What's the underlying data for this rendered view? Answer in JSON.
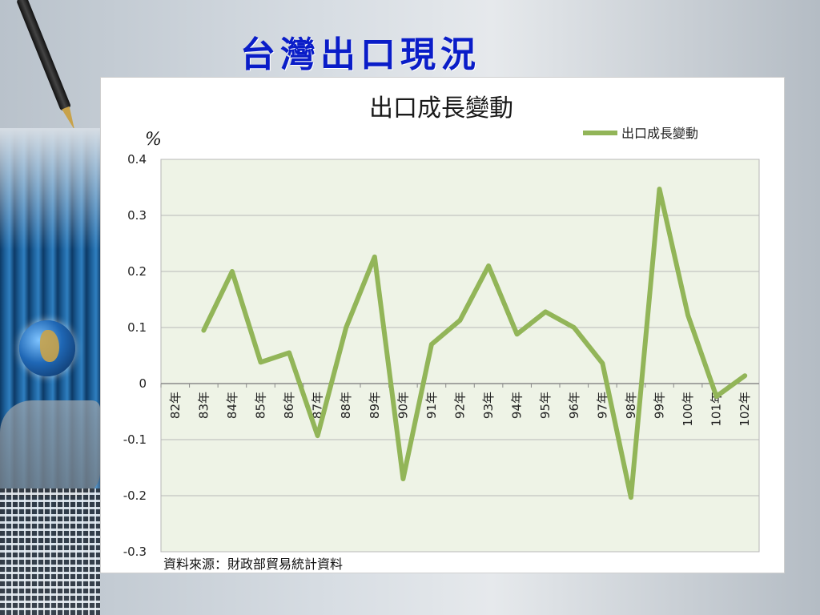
{
  "slide": {
    "title": "台灣出口現況"
  },
  "chart_data": {
    "type": "line",
    "title": "出口成長變動",
    "ylabel": "%",
    "xlabel": "",
    "ylim": [
      -0.3,
      0.4
    ],
    "yticks": [
      0.4,
      0.3,
      0.2,
      0.1,
      0,
      -0.1,
      -0.2,
      -0.3
    ],
    "ytick_labels": [
      "0.4",
      "0.3",
      "0.2",
      "0.1",
      "0",
      "-0.1",
      "-0.2",
      "-0.3"
    ],
    "categories": [
      "82年",
      "83年",
      "84年",
      "85年",
      "86年",
      "87年",
      "88年",
      "89年",
      "90年",
      "91年",
      "92年",
      "93年",
      "94年",
      "95年",
      "96年",
      "97年",
      "98年",
      "99年",
      "100年",
      "101年",
      "102年"
    ],
    "series": [
      {
        "name": "出口成長變動",
        "color": "#92b558",
        "values": [
          null,
          0.095,
          0.2,
          0.038,
          0.055,
          -0.093,
          0.1,
          0.226,
          -0.17,
          0.07,
          0.113,
          0.21,
          0.088,
          0.128,
          0.1,
          0.036,
          -0.203,
          0.347,
          0.122,
          -0.023,
          0.014
        ]
      }
    ],
    "grid": true,
    "legend": "top-right",
    "plot_background": "#eef3e6",
    "source_note": "資料來源：財政部貿易統計資料"
  }
}
